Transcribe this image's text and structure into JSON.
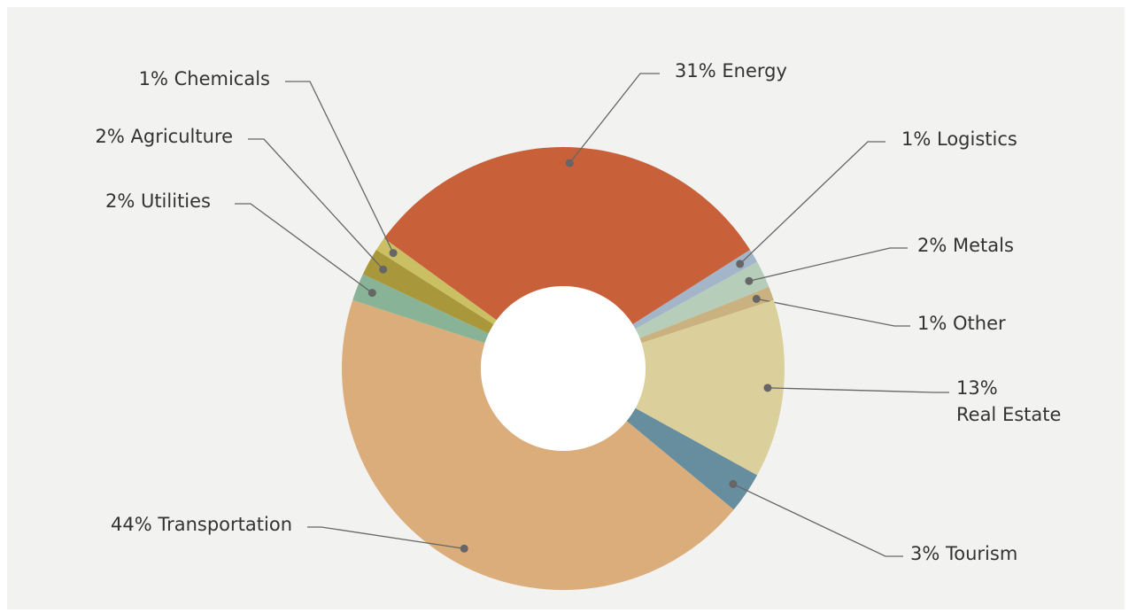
{
  "chart_data": {
    "type": "donut",
    "categories": [
      "Energy",
      "Logistics",
      "Metals",
      "Other",
      "Real Estate",
      "Tourism",
      "Transportation",
      "Utilities",
      "Agriculture",
      "Chemicals"
    ],
    "values": [
      31,
      1,
      2,
      1,
      13,
      3,
      44,
      2,
      2,
      1
    ],
    "value_labels": [
      "31%",
      "1%",
      "2%",
      "1%",
      "13%",
      "3%",
      "44%",
      "2%",
      "2%",
      "1%"
    ],
    "colors": [
      "#c8613a",
      "#a3b5c8",
      "#b5cdb9",
      "#c9b27f",
      "#dbd09c",
      "#678e9e",
      "#dbad7a",
      "#88b396",
      "#a9983b",
      "#cbbf64"
    ]
  }
}
